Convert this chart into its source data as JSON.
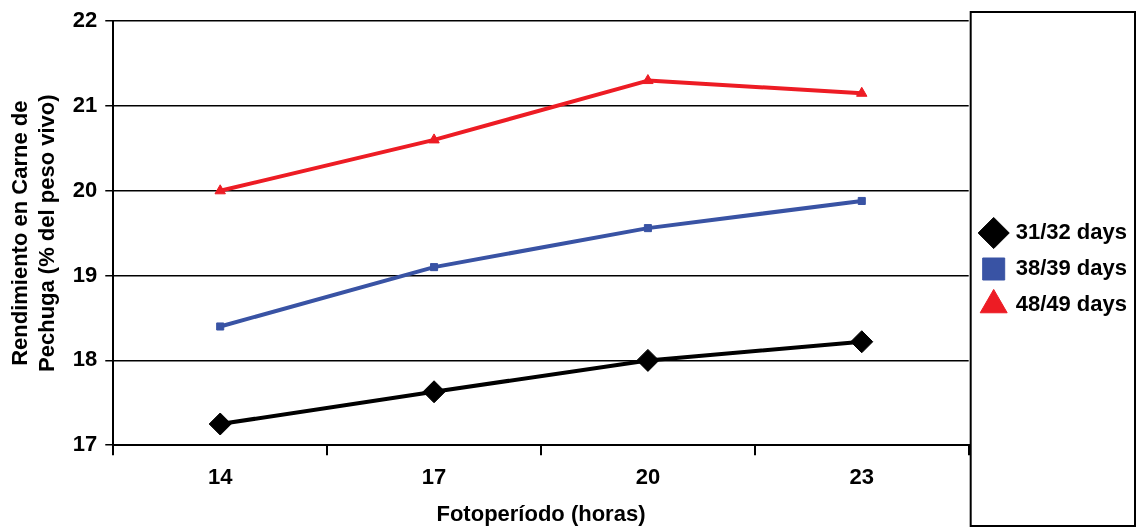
{
  "chart_data": {
    "type": "line",
    "xlabel": "Fotoperíodo (horas)",
    "ylabel": "Rendimiento en Carne de\nPechuga (% del peso vivo)",
    "categories": [
      "14",
      "17",
      "20",
      "23"
    ],
    "series": [
      {
        "name": "31/32 days",
        "color": "#000000",
        "marker": "diamond",
        "values": [
          17.25,
          17.63,
          18.0,
          18.22
        ]
      },
      {
        "name": "38/39 days",
        "color": "#3953a4",
        "marker": "square",
        "values": [
          18.4,
          19.1,
          19.56,
          19.88
        ]
      },
      {
        "name": "48/49 days",
        "color": "#ed1c24",
        "marker": "triangle",
        "values": [
          20.0,
          20.6,
          21.3,
          21.15
        ]
      }
    ],
    "ylim": [
      17,
      22
    ],
    "yticks": [
      17,
      18,
      19,
      20,
      21,
      22
    ],
    "grid": "y",
    "legend": "right",
    "line_style": "solid"
  }
}
